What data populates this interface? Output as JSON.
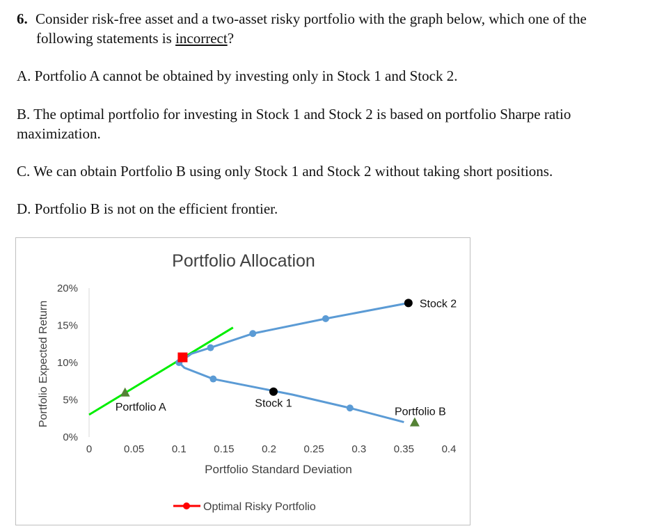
{
  "question": {
    "number": "6.",
    "text_line1": "Consider risk-free asset and a two-asset risky portfolio with the graph below, which one of the",
    "text_line2_pre": "following statements is ",
    "text_line2_underlined": "incorrect",
    "text_line2_post": "?"
  },
  "options": [
    {
      "line1": "A. Portfolio A cannot be obtained by investing only in Stock 1 and Stock 2.",
      "line2": ""
    },
    {
      "line1": "B. The optimal portfolio for investing in Stock 1 and Stock 2 is based on portfolio Sharpe ratio",
      "line2": "maximization."
    },
    {
      "line1": "C. We can obtain Portfolio B using only Stock 1 and Stock 2 without taking short positions.",
      "line2": ""
    },
    {
      "line1": "D. Portfolio B is not on the efficient frontier.",
      "line2": ""
    }
  ],
  "chart_data": {
    "type": "line",
    "title": "Portfolio Allocation",
    "xlabel": "Portfolio Standard Deviation",
    "ylabel": "Portfolio Expected Return",
    "xlim": [
      0,
      0.4
    ],
    "ylim": [
      0,
      0.2
    ],
    "x_ticks": [
      "0",
      "0.05",
      "0.1",
      "0.15",
      "0.2",
      "0.25",
      "0.3",
      "0.35",
      "0.4"
    ],
    "y_ticks": [
      "0%",
      "5%",
      "10%",
      "15%",
      "20%"
    ],
    "grid": false,
    "legend_position": "bottom",
    "legend": [
      {
        "name": "Optimal Risky Portfolio",
        "color": "#ff0000"
      }
    ],
    "frontier": {
      "color": "#5b9bd5",
      "x": [
        0.35,
        0.29,
        0.226,
        0.138,
        0.106,
        0.1,
        0.114,
        0.135,
        0.182,
        0.263,
        0.355
      ],
      "y": [
        0.02,
        0.039,
        0.057,
        0.078,
        0.093,
        0.1,
        0.112,
        0.12,
        0.139,
        0.159,
        0.18
      ],
      "markers_x": [
        0.29,
        0.138,
        0.1,
        0.135,
        0.182,
        0.263
      ],
      "markers_y": [
        0.039,
        0.078,
        0.1,
        0.12,
        0.139,
        0.159
      ]
    },
    "cal": {
      "color": "#00ee00",
      "x": [
        0.0,
        0.16
      ],
      "y": [
        0.03,
        0.147
      ]
    },
    "points": [
      {
        "name": "Stock 1",
        "x": 0.205,
        "y": 0.061,
        "shape": "circle",
        "color": "#000000"
      },
      {
        "name": "Stock 2",
        "x": 0.355,
        "y": 0.18,
        "shape": "circle",
        "color": "#000000"
      },
      {
        "name": "Portfolio A",
        "x": 0.04,
        "y": 0.06,
        "shape": "triangle",
        "color": "#548235"
      },
      {
        "name": "Portfolio B",
        "x": 0.362,
        "y": 0.02,
        "shape": "triangle",
        "color": "#548235"
      },
      {
        "name": "Optimal Risky Portfolio",
        "x": 0.104,
        "y": 0.107,
        "shape": "square",
        "color": "#ff0000"
      }
    ]
  }
}
